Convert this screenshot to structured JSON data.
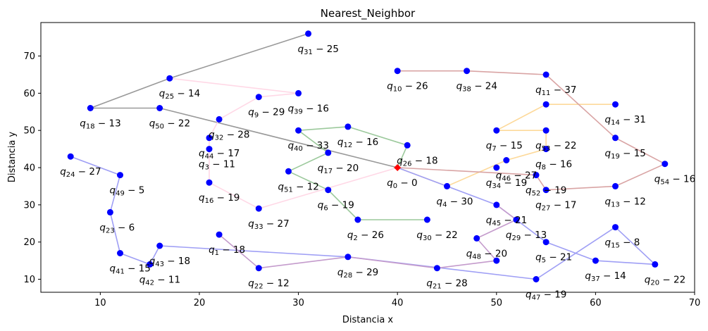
{
  "chart_data": {
    "type": "scatter",
    "title": "Nearest_Neighbor",
    "xlabel": "Distancia x",
    "ylabel": "Distancia y",
    "xlim": [
      4,
      70
    ],
    "ylim": [
      6.5,
      79
    ],
    "xticks": [
      10,
      20,
      30,
      40,
      50,
      60,
      70
    ],
    "yticks": [
      10,
      20,
      30,
      40,
      50,
      60,
      70
    ],
    "grid": false,
    "point_color": "#0000ff",
    "depot_color": "#ff0000",
    "depot": {
      "x": 40,
      "y": 40,
      "label": "q_0-0"
    },
    "points": [
      {
        "id": "q1",
        "x": 22,
        "y": 22,
        "label": "q_1-18"
      },
      {
        "id": "q2",
        "x": 36,
        "y": 26,
        "label": "q_2-26"
      },
      {
        "id": "q3",
        "x": 21,
        "y": 45,
        "label": "q_3-11"
      },
      {
        "id": "q4",
        "x": 45,
        "y": 35,
        "label": "q_4-30"
      },
      {
        "id": "q5",
        "x": 55,
        "y": 20,
        "label": "q_5-21"
      },
      {
        "id": "q6",
        "x": 33,
        "y": 34,
        "label": "q_6-19"
      },
      {
        "id": "q7",
        "x": 50,
        "y": 50,
        "label": "q_7-15"
      },
      {
        "id": "q8",
        "x": 55,
        "y": 45,
        "label": "q_8-16"
      },
      {
        "id": "q9",
        "x": 26,
        "y": 59,
        "label": "q_9-29"
      },
      {
        "id": "q10",
        "x": 40,
        "y": 66,
        "label": "q_10-26"
      },
      {
        "id": "q11",
        "x": 55,
        "y": 65,
        "label": "q_11-37"
      },
      {
        "id": "q12",
        "x": 35,
        "y": 51,
        "label": "q_12-16"
      },
      {
        "id": "q13",
        "x": 62,
        "y": 35,
        "label": "q_13-12"
      },
      {
        "id": "q14",
        "x": 62,
        "y": 57,
        "label": "q_14-31"
      },
      {
        "id": "q15",
        "x": 62,
        "y": 24,
        "label": "q_15-8"
      },
      {
        "id": "q16",
        "x": 21,
        "y": 36,
        "label": "q_16-19"
      },
      {
        "id": "q17",
        "x": 33,
        "y": 44,
        "label": "q_17-20"
      },
      {
        "id": "q18",
        "x": 9,
        "y": 56,
        "label": "q_18-13"
      },
      {
        "id": "q19",
        "x": 62,
        "y": 48,
        "label": "q_19-15"
      },
      {
        "id": "q20",
        "x": 66,
        "y": 14,
        "label": "q_20-22"
      },
      {
        "id": "q21",
        "x": 44,
        "y": 13,
        "label": "q_21-28"
      },
      {
        "id": "q22",
        "x": 26,
        "y": 13,
        "label": "q_22-12"
      },
      {
        "id": "q23",
        "x": 11,
        "y": 28,
        "label": "q_23-6"
      },
      {
        "id": "q24",
        "x": 7,
        "y": 43,
        "label": "q_24-27"
      },
      {
        "id": "q25",
        "x": 17,
        "y": 64,
        "label": "q_25-14"
      },
      {
        "id": "q26",
        "x": 41,
        "y": 46,
        "label": "q_26-18"
      },
      {
        "id": "q27",
        "x": 55,
        "y": 34,
        "label": "q_27-17"
      },
      {
        "id": "q28",
        "x": 35,
        "y": 16,
        "label": "q_28-29"
      },
      {
        "id": "q29",
        "x": 52,
        "y": 26,
        "label": "q_29-13"
      },
      {
        "id": "q30",
        "x": 43,
        "y": 26,
        "label": "q_30-22"
      },
      {
        "id": "q31",
        "x": 31,
        "y": 76,
        "label": "q_31-25"
      },
      {
        "id": "q32",
        "x": 22,
        "y": 53,
        "label": "q_32-28"
      },
      {
        "id": "q33",
        "x": 26,
        "y": 29,
        "label": "q_33-27"
      },
      {
        "id": "q34",
        "x": 50,
        "y": 40,
        "label": "q_34-19"
      },
      {
        "id": "q37",
        "x": 60,
        "y": 15,
        "label": "q_37-14"
      },
      {
        "id": "q38",
        "x": 47,
        "y": 66,
        "label": "q_38-24"
      },
      {
        "id": "q39",
        "x": 30,
        "y": 60,
        "label": "q_39-16"
      },
      {
        "id": "q40",
        "x": 30,
        "y": 50,
        "label": "q_40-33"
      },
      {
        "id": "q41",
        "x": 12,
        "y": 17,
        "label": "q_41-15"
      },
      {
        "id": "q42",
        "x": 15,
        "y": 14,
        "label": "q_42-11"
      },
      {
        "id": "q43",
        "x": 16,
        "y": 19,
        "label": "q_43-18"
      },
      {
        "id": "q44",
        "x": 21,
        "y": 48,
        "label": "q_44-17"
      },
      {
        "id": "q45",
        "x": 50,
        "y": 30,
        "label": "q_45-21"
      },
      {
        "id": "q46",
        "x": 51,
        "y": 42,
        "label": "q_46-27"
      },
      {
        "id": "q47",
        "x": 54,
        "y": 10,
        "label": "q_47-19"
      },
      {
        "id": "q48",
        "x": 48,
        "y": 21,
        "label": "q_48-20"
      },
      {
        "id": "q49",
        "x": 12,
        "y": 38,
        "label": "q_49-5"
      },
      {
        "id": "q50",
        "x": 16,
        "y": 56,
        "label": "q_50-22"
      },
      {
        "id": "q51",
        "x": 29,
        "y": 39,
        "label": "q_51-12"
      },
      {
        "id": "q52",
        "x": 54,
        "y": 38,
        "label": "q_52-19"
      },
      {
        "id": "q53",
        "x": 55,
        "y": 50,
        "label": "q_53-22"
      },
      {
        "id": "q54",
        "x": 67,
        "y": 41,
        "label": "q_54-16"
      },
      {
        "id": "qA",
        "x": 50,
        "y": 15,
        "label": ""
      },
      {
        "id": "qB",
        "x": 55,
        "y": 57,
        "label": ""
      }
    ],
    "routes": [
      {
        "color": "#999999",
        "path": [
          [
            40,
            40
          ],
          [
            16,
            56
          ],
          [
            9,
            56
          ],
          [
            17,
            64
          ],
          [
            31,
            76
          ]
        ]
      },
      {
        "color": "#ffd8e6",
        "path": [
          [
            17,
            64
          ],
          [
            30,
            60
          ],
          [
            26,
            59
          ],
          [
            22,
            53
          ],
          [
            21,
            48
          ],
          [
            21,
            45
          ],
          [
            21,
            36
          ],
          [
            26,
            29
          ],
          [
            40,
            40
          ]
        ]
      },
      {
        "color": "#9cc99c",
        "path": [
          [
            40,
            40
          ],
          [
            41,
            46
          ],
          [
            35,
            51
          ],
          [
            30,
            50
          ],
          [
            33,
            44
          ],
          [
            29,
            39
          ],
          [
            33,
            34
          ],
          [
            36,
            26
          ],
          [
            43,
            26
          ]
        ]
      },
      {
        "color": "#fdd99a",
        "path": [
          [
            40,
            40
          ],
          [
            45,
            35
          ],
          [
            51,
            42
          ],
          [
            55,
            45
          ],
          [
            55,
            50
          ],
          [
            50,
            50
          ],
          [
            55,
            57
          ],
          [
            62,
            57
          ]
        ]
      },
      {
        "color": "#d9a4a4",
        "path": [
          [
            40,
            40
          ],
          [
            54,
            38
          ],
          [
            55,
            34
          ],
          [
            62,
            35
          ],
          [
            67,
            41
          ],
          [
            62,
            48
          ],
          [
            55,
            65
          ],
          [
            47,
            66
          ],
          [
            40,
            66
          ]
        ]
      },
      {
        "color": "#9f9ff5",
        "path": [
          [
            40,
            40
          ],
          [
            50,
            30
          ],
          [
            55,
            20
          ],
          [
            60,
            15
          ],
          [
            66,
            14
          ],
          [
            62,
            24
          ],
          [
            54,
            10
          ],
          [
            35,
            16
          ],
          [
            16,
            19
          ],
          [
            15,
            14
          ],
          [
            12,
            17
          ],
          [
            11,
            28
          ],
          [
            12,
            38
          ],
          [
            7,
            43
          ]
        ]
      },
      {
        "color": "#c49bcc",
        "path": [
          [
            22,
            22
          ],
          [
            26,
            13
          ],
          [
            35,
            16
          ],
          [
            44,
            13
          ],
          [
            50,
            15
          ],
          [
            48,
            21
          ],
          [
            52,
            26
          ],
          [
            50,
            30
          ]
        ]
      }
    ]
  }
}
